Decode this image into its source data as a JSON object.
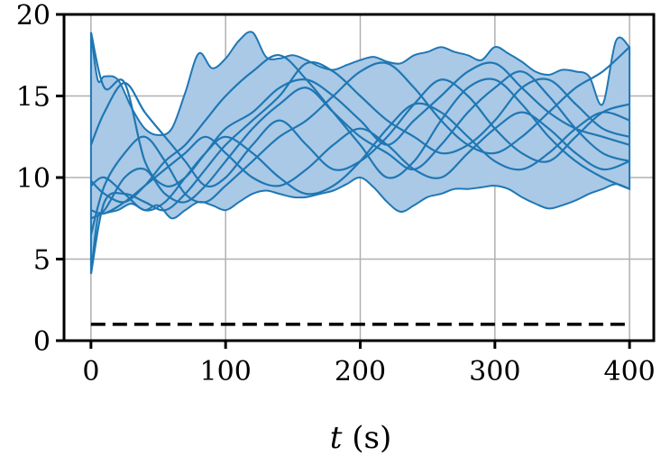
{
  "chart_data": {
    "type": "line",
    "xlabel_var": "t",
    "xlabel_unit": " (s)",
    "ylabel": "",
    "xlim": [
      -20,
      418
    ],
    "ylim": [
      0,
      20
    ],
    "xticks": [
      0,
      100,
      200,
      300,
      400
    ],
    "yticks": [
      0,
      5,
      10,
      15,
      20
    ],
    "grid": true,
    "colors": {
      "series": "#1f77b4",
      "band": "#a9c9e6",
      "reference": "#000000"
    },
    "band": {
      "x": [
        0,
        5,
        10,
        20,
        30,
        40,
        50,
        60,
        70,
        80,
        90,
        100,
        110,
        120,
        130,
        140,
        150,
        160,
        170,
        180,
        190,
        200,
        210,
        220,
        230,
        240,
        250,
        260,
        270,
        280,
        290,
        300,
        310,
        320,
        330,
        340,
        350,
        360,
        370,
        380,
        390,
        400
      ],
      "lower": [
        4.1,
        7.5,
        7.8,
        8.0,
        8.4,
        8.0,
        8.3,
        7.5,
        8.0,
        8.5,
        8.3,
        8.0,
        8.5,
        9.0,
        9.2,
        9.0,
        8.8,
        8.8,
        9.0,
        9.2,
        9.6,
        10.0,
        9.4,
        8.5,
        7.9,
        8.3,
        8.8,
        9.0,
        9.3,
        9.3,
        9.4,
        9.5,
        9.3,
        8.8,
        8.4,
        8.1,
        8.3,
        8.6,
        9.0,
        9.3,
        9.6,
        9.3
      ],
      "upper": [
        18.9,
        16.0,
        16.2,
        16.0,
        14.3,
        13.0,
        12.6,
        13.0,
        15.2,
        17.6,
        16.7,
        17.3,
        18.4,
        18.9,
        17.4,
        17.3,
        17.5,
        17.2,
        16.8,
        16.6,
        16.9,
        17.2,
        17.4,
        17.1,
        17.0,
        17.5,
        17.7,
        18.0,
        17.7,
        17.5,
        17.2,
        18.0,
        17.6,
        17.1,
        16.5,
        16.3,
        16.6,
        16.5,
        16.2,
        14.5,
        18.4,
        18.0
      ]
    },
    "series": [
      {
        "x": [
          0,
          10,
          25,
          40,
          55,
          70,
          85,
          100,
          120,
          140,
          160,
          180,
          200,
          220,
          240,
          260,
          280,
          300,
          320,
          340,
          360,
          380,
          400
        ],
        "values": [
          18.9,
          15.5,
          15.8,
          11.0,
          9.5,
          10.0,
          11.5,
          13.0,
          14.0,
          15.5,
          16.0,
          15.0,
          13.5,
          12.0,
          13.5,
          15.0,
          16.5,
          17.0,
          15.5,
          14.0,
          13.0,
          12.5,
          12.0
        ]
      },
      {
        "x": [
          0,
          10,
          25,
          40,
          55,
          70,
          85,
          100,
          120,
          140,
          160,
          180,
          200,
          220,
          240,
          260,
          280,
          300,
          320,
          340,
          360,
          380,
          400
        ],
        "values": [
          12.0,
          14.0,
          15.8,
          14.0,
          12.5,
          11.0,
          9.5,
          10.0,
          12.0,
          13.5,
          12.0,
          10.5,
          11.0,
          12.5,
          14.5,
          16.0,
          15.0,
          13.0,
          11.5,
          11.0,
          12.5,
          14.0,
          14.5
        ]
      },
      {
        "x": [
          0,
          10,
          25,
          40,
          55,
          70,
          85,
          100,
          120,
          140,
          160,
          180,
          200,
          220,
          240,
          260,
          280,
          300,
          320,
          340,
          360,
          380,
          400
        ],
        "values": [
          4.1,
          8.5,
          9.0,
          8.5,
          8.0,
          9.0,
          10.5,
          12.0,
          13.5,
          15.0,
          17.0,
          16.5,
          15.0,
          13.5,
          12.5,
          11.5,
          12.0,
          13.5,
          15.5,
          16.0,
          14.5,
          13.0,
          12.5
        ]
      },
      {
        "x": [
          0,
          10,
          25,
          40,
          55,
          70,
          85,
          100,
          120,
          140,
          160,
          180,
          200,
          220,
          240,
          260,
          280,
          300,
          320,
          340,
          360,
          380,
          400
        ],
        "values": [
          9.5,
          10.0,
          9.0,
          8.0,
          8.5,
          10.0,
          11.5,
          12.5,
          11.5,
          10.0,
          9.0,
          9.5,
          11.0,
          13.0,
          14.5,
          14.0,
          12.5,
          11.0,
          10.5,
          11.5,
          13.0,
          14.0,
          13.5
        ]
      },
      {
        "x": [
          0,
          10,
          25,
          40,
          55,
          70,
          85,
          100,
          120,
          140,
          160,
          180,
          200,
          220,
          240,
          260,
          280,
          300,
          320,
          340,
          360,
          380,
          400
        ],
        "values": [
          7.5,
          8.0,
          10.0,
          10.5,
          9.0,
          8.5,
          9.5,
          11.0,
          13.0,
          14.5,
          15.5,
          14.0,
          12.5,
          11.5,
          10.5,
          12.0,
          14.0,
          15.5,
          16.5,
          15.0,
          13.0,
          11.5,
          11.0
        ]
      },
      {
        "x": [
          0,
          10,
          25,
          40,
          55,
          70,
          85,
          100,
          120,
          140,
          160,
          180,
          200,
          220,
          240,
          260,
          280,
          300,
          320,
          340,
          360,
          380,
          400
        ],
        "values": [
          9.8,
          9.0,
          8.5,
          9.5,
          11.0,
          12.0,
          13.5,
          15.0,
          16.5,
          17.5,
          16.0,
          14.0,
          12.0,
          10.0,
          11.0,
          13.5,
          15.5,
          16.0,
          14.5,
          12.5,
          11.0,
          10.0,
          9.3
        ]
      },
      {
        "x": [
          0,
          10,
          25,
          40,
          55,
          70,
          85,
          100,
          120,
          140,
          160,
          180,
          200,
          220,
          240,
          260,
          280,
          300,
          320,
          340,
          360,
          380,
          400
        ],
        "values": [
          6.5,
          9.5,
          11.5,
          12.5,
          11.0,
          9.0,
          8.5,
          9.5,
          11.0,
          12.5,
          13.5,
          15.0,
          16.5,
          17.0,
          15.5,
          13.5,
          12.0,
          11.5,
          12.5,
          14.0,
          15.5,
          16.5,
          18.0
        ]
      },
      {
        "x": [
          0,
          10,
          25,
          40,
          55,
          70,
          85,
          100,
          120,
          140,
          160,
          180,
          200,
          220,
          240,
          260,
          280,
          300,
          320,
          340,
          360,
          380,
          400
        ],
        "values": [
          8.0,
          7.8,
          8.5,
          9.5,
          10.5,
          11.5,
          12.5,
          11.5,
          10.0,
          9.5,
          10.5,
          12.0,
          13.0,
          12.0,
          10.5,
          10.0,
          11.5,
          13.0,
          14.0,
          13.0,
          11.5,
          10.5,
          11.0
        ]
      }
    ],
    "reference_line": {
      "y": 1,
      "x": [
        0,
        400
      ]
    }
  }
}
